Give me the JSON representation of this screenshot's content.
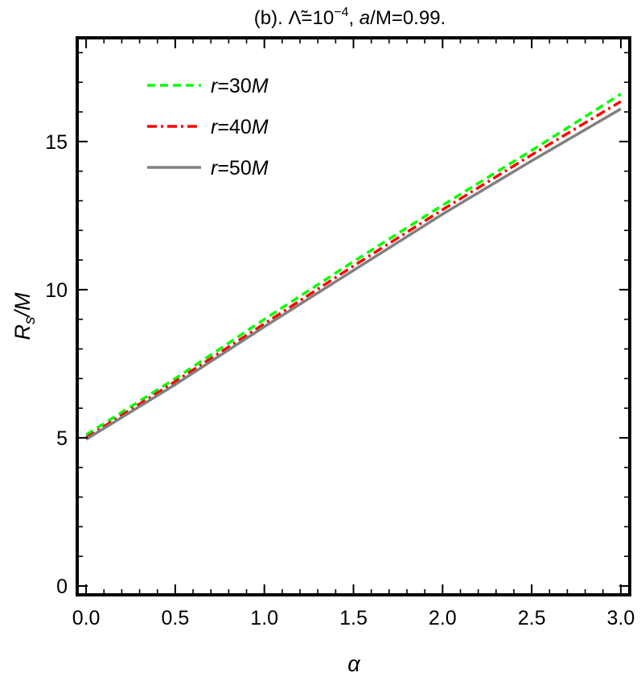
{
  "chart_data": {
    "type": "line",
    "title": {
      "prefix": "(b). ",
      "lambda_symbol": "Λ̃",
      "eq1": "=10",
      "exponent": "−4",
      "sep": ", ",
      "a_symbol": "a",
      "rest": "/M=0.99."
    },
    "xlabel": "α",
    "ylabel": {
      "main": "R",
      "sub": "s",
      "rest": "/M"
    },
    "xlim": [
      -0.05,
      3.05
    ],
    "ylim": [
      -0.3,
      18.5
    ],
    "x_ticks": [
      0.0,
      0.5,
      1.0,
      1.5,
      2.0,
      2.5,
      3.0
    ],
    "x_tick_labels": [
      "0.0",
      "0.5",
      "1.0",
      "1.5",
      "2.0",
      "2.5",
      "3.0"
    ],
    "y_ticks": [
      0,
      5,
      10,
      15
    ],
    "y_tick_labels": [
      "0",
      "5",
      "10",
      "15"
    ],
    "legend_position": "top-left",
    "grid": false,
    "series": [
      {
        "name": "r=30M",
        "label_r": "r",
        "label_eq": "=30",
        "label_m": "M",
        "color": "#00ff00",
        "dash": "dashed",
        "x": [
          0.0,
          0.5,
          1.0,
          1.5,
          2.0,
          2.5,
          3.0
        ],
        "y": [
          5.1,
          7.0,
          9.0,
          10.95,
          12.85,
          14.7,
          16.6
        ]
      },
      {
        "name": "r=40M",
        "label_r": "r",
        "label_eq": "=40",
        "label_m": "M",
        "color": "#ff0000",
        "dash": "dashdot",
        "x": [
          0.0,
          0.5,
          1.0,
          1.5,
          2.0,
          2.5,
          3.0
        ],
        "y": [
          5.0,
          6.9,
          8.85,
          10.8,
          12.7,
          14.55,
          16.35
        ]
      },
      {
        "name": "r=50M",
        "label_r": "r",
        "label_eq": "=50",
        "label_m": "M",
        "color": "#808080",
        "dash": "solid",
        "x": [
          0.0,
          0.5,
          1.0,
          1.5,
          2.0,
          2.5,
          3.0
        ],
        "y": [
          4.95,
          6.8,
          8.75,
          10.65,
          12.55,
          14.35,
          16.1
        ]
      }
    ]
  }
}
